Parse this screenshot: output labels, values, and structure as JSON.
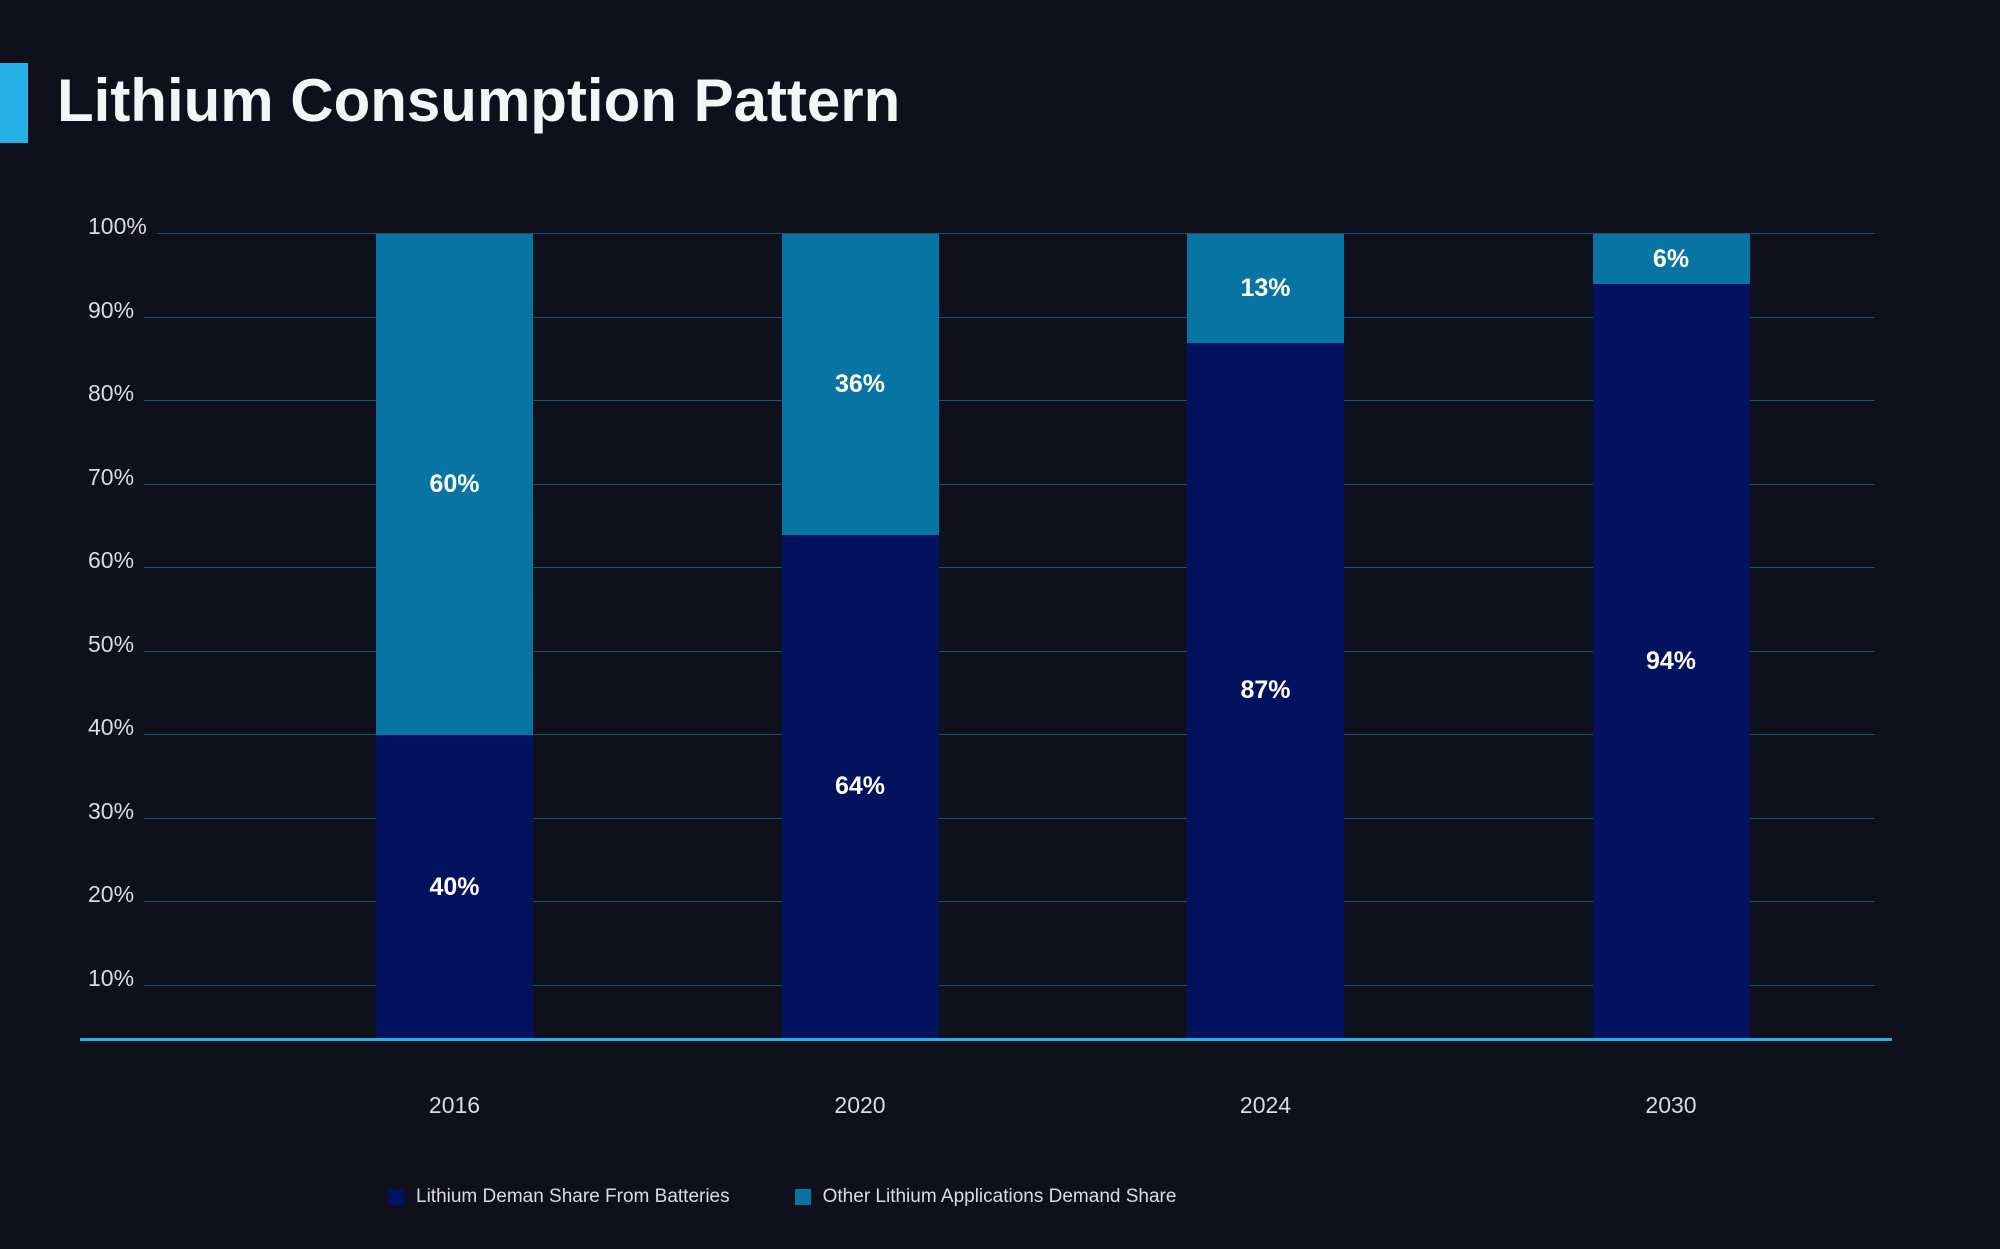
{
  "page": {
    "title": "Lithium Consumption Pattern"
  },
  "theme": {
    "bg": "#0e111b",
    "accent": "#26b2e6",
    "title-color": "#f4f5f6",
    "axis-text": "#d9dce1",
    "grid-color": "rgba(38,178,230,0.42)",
    "value-text": "#ffffff"
  },
  "chart_data": {
    "type": "bar",
    "stacked": true,
    "title": "Lithium Consumption Pattern",
    "categories": [
      "2016",
      "2020",
      "2024",
      "2030"
    ],
    "series": [
      {
        "name": "Lithium Deman Share From Batteries",
        "color": "#02125e",
        "values": [
          40,
          64,
          87,
          94
        ],
        "labels": [
          "40%",
          "64%",
          "87%",
          "94%"
        ]
      },
      {
        "name": "Other Lithium Applications Demand Share",
        "color": "#0874a4",
        "values": [
          60,
          36,
          13,
          6
        ],
        "labels": [
          "60%",
          "36%",
          "13%",
          "6%"
        ]
      }
    ],
    "y_axis": {
      "ticks": [
        "100%",
        "90%",
        "80%",
        "70%",
        "60%",
        "50%",
        "40%",
        "30%",
        "20%",
        "10%"
      ],
      "min": 0,
      "max": 100,
      "grid": true
    },
    "value_label_format": "{value}%",
    "legend_position": "bottom"
  }
}
